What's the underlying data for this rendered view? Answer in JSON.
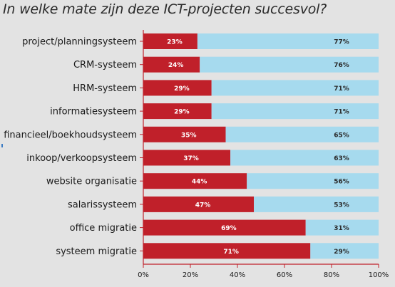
{
  "chart_data": {
    "type": "bar",
    "orientation": "horizontal",
    "stacked": true,
    "title": "In welke mate zijn deze ICT-projecten succesvol?",
    "categories": [
      "project/planningsysteem",
      "CRM-systeem",
      "HRM-systeem",
      "informatiesysteem",
      "financieel/boekhoudsysteem",
      "inkoop/verkoopsysteem",
      "website organisatie",
      "salarissysteem",
      "office migratie",
      "systeem migratie"
    ],
    "series": [
      {
        "values": [
          23,
          24,
          29,
          29,
          35,
          37,
          44,
          47,
          69,
          71
        ],
        "labels": [
          "23%",
          "24%",
          "29%",
          "29%",
          "35%",
          "37%",
          "44%",
          "47%",
          "69%",
          "71%"
        ],
        "color": "#c0202a"
      },
      {
        "values": [
          77,
          76,
          71,
          71,
          65,
          63,
          56,
          53,
          31,
          29
        ],
        "labels": [
          "77%",
          "76%",
          "71%",
          "71%",
          "65%",
          "63%",
          "56%",
          "53%",
          "31%",
          "29%"
        ],
        "color": "#a6daee"
      }
    ],
    "x_ticks": [
      "0%",
      "20%",
      "40%",
      "60%",
      "80%",
      "100%"
    ],
    "xlim": [
      0,
      100
    ],
    "grid": false,
    "legend": "none"
  },
  "colors": {
    "background": "#e3e3e3",
    "title_text": "#2b2b2b",
    "axis": "#c0202a"
  }
}
